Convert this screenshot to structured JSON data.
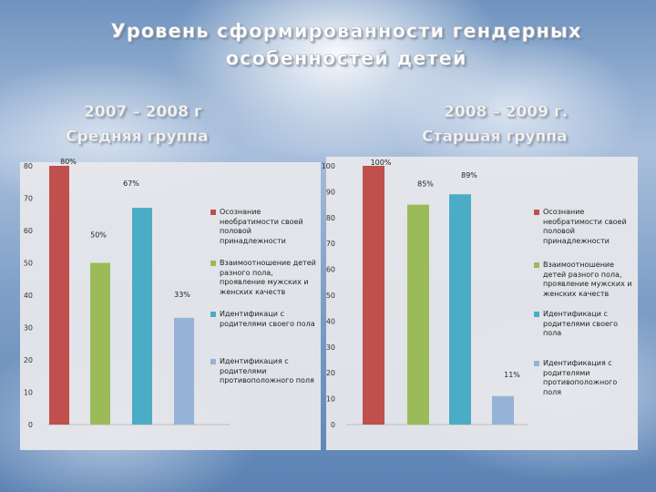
{
  "page": {
    "title_line1": "Уровень сформированности гендерных",
    "title_line2": "особенностей детей"
  },
  "chart_data": [
    {
      "type": "bar",
      "subtitle_year": "2007 – 2008 г",
      "subtitle_group": "Средняя группа",
      "categories": [
        "Осознание необратимости своей половой принадлежности",
        "Взаимоотношение детей разного пола, проявление мужских и женских качеств",
        "Идентификаци с родителями своего пола",
        "Идентификация с родителями противоположного поля"
      ],
      "values": [
        80,
        50,
        67,
        33
      ],
      "data_labels": [
        "80%",
        "50%",
        "67%",
        "33%"
      ],
      "colors": [
        "#c0504d",
        "#9bbb59",
        "#4bacc6",
        "#95b3d7"
      ],
      "ylim": [
        0,
        80
      ],
      "yticks": [
        0,
        10,
        20,
        30,
        40,
        50,
        60,
        70,
        80
      ],
      "legend": "right"
    },
    {
      "type": "bar",
      "subtitle_year": "2008 – 2009 г.",
      "subtitle_group": "Старшая группа",
      "categories": [
        "Осознание необратимости своей половой принадлежности",
        "Взаимоотношение детей разного пола, проявление мужских и женских качеств",
        "Идентификаци с родителями своего пола",
        "Идентификация с родителями противоположного поля"
      ],
      "values": [
        100,
        85,
        89,
        11
      ],
      "data_labels": [
        "100%",
        "85%",
        "89%",
        "11%"
      ],
      "colors": [
        "#c0504d",
        "#9bbb59",
        "#4bacc6",
        "#95b3d7"
      ],
      "ylim": [
        0,
        100
      ],
      "yticks": [
        0,
        10,
        20,
        30,
        40,
        50,
        60,
        70,
        80,
        90,
        100
      ],
      "legend": "right"
    }
  ]
}
